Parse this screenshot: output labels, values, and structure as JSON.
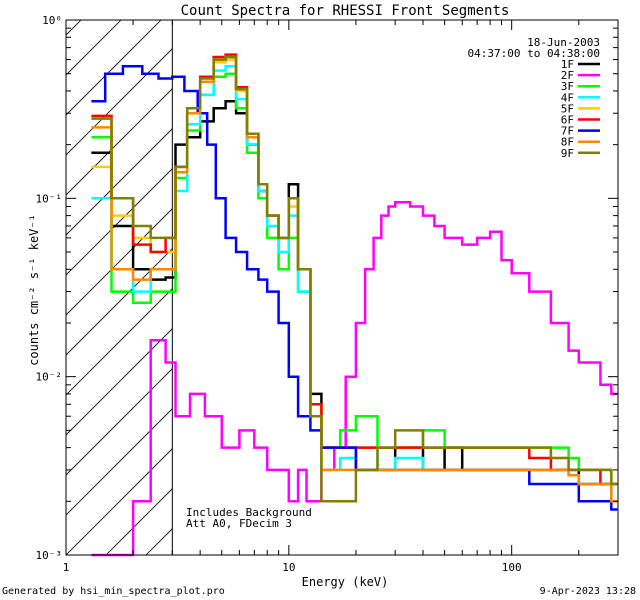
{
  "chart_data": {
    "type": "line",
    "title": "Count Spectra for RHESSI Front Segments",
    "xlabel": "Energy (keV)",
    "ylabel": "counts cm⁻² s⁻¹ keV⁻¹",
    "xscale": "log",
    "yscale": "log",
    "xlim": [
      1,
      300
    ],
    "ylim": [
      0.001,
      1
    ],
    "x_tick_labels": [
      {
        "value": 1,
        "label": "1"
      },
      {
        "value": 10,
        "label": "10"
      },
      {
        "value": 100,
        "label": "100"
      }
    ],
    "y_tick_labels": [
      {
        "value": 1,
        "label": "10⁰"
      },
      {
        "value": 0.1,
        "label": "10⁻¹"
      },
      {
        "value": 0.01,
        "label": "10⁻²"
      },
      {
        "value": 0.001,
        "label": "10⁻³"
      }
    ],
    "date": "18-Jun-2003",
    "time_range": "04:37:00 to 04:38:00",
    "attenuator_text": [
      "Includes Background",
      "Att A0, FDecim 3"
    ],
    "excluded_region_keV": [
      1,
      3
    ],
    "legend_position": "top-right",
    "series": [
      {
        "name": "1F",
        "color": "#000000",
        "x": [
          1.3,
          1.6,
          2.0,
          2.4,
          2.8,
          3.1,
          3.5,
          4.0,
          4.6,
          5.2,
          5.8,
          6.5,
          7.3,
          8.0,
          9.0,
          10.0,
          11.0,
          12.5,
          14,
          17,
          20,
          25,
          30,
          40,
          50,
          60,
          70,
          80,
          100,
          120,
          150,
          180,
          200,
          250,
          280
        ],
        "y": [
          0.18,
          0.07,
          0.04,
          0.035,
          0.036,
          0.2,
          0.22,
          0.27,
          0.32,
          0.35,
          0.3,
          0.2,
          0.11,
          0.08,
          0.06,
          0.12,
          0.04,
          0.008,
          0.004,
          0.004,
          0.003,
          0.003,
          0.004,
          0.003,
          0.004,
          0.003,
          0.003,
          0.003,
          0.003,
          0.003,
          0.003,
          0.003,
          0.0025,
          0.0025,
          0.002
        ]
      },
      {
        "name": "2F",
        "color": "#ff00ff",
        "x": [
          1.3,
          1.6,
          2.0,
          2.4,
          2.8,
          3.1,
          3.6,
          4.2,
          5.0,
          6.0,
          7.0,
          8.0,
          9.0,
          10,
          11,
          12,
          14,
          16,
          18,
          20,
          22,
          24,
          26,
          28,
          30,
          35,
          40,
          45,
          50,
          60,
          70,
          80,
          90,
          100,
          120,
          150,
          180,
          200,
          250,
          280
        ],
        "y": [
          0.001,
          0.001,
          0.002,
          0.016,
          0.012,
          0.006,
          0.008,
          0.006,
          0.004,
          0.005,
          0.004,
          0.003,
          0.003,
          0.002,
          0.003,
          0.002,
          0.003,
          0.004,
          0.01,
          0.02,
          0.04,
          0.06,
          0.08,
          0.09,
          0.095,
          0.09,
          0.08,
          0.07,
          0.06,
          0.055,
          0.06,
          0.065,
          0.045,
          0.038,
          0.03,
          0.02,
          0.014,
          0.012,
          0.009,
          0.008
        ]
      },
      {
        "name": "3F",
        "color": "#00ff00",
        "x": [
          1.3,
          1.6,
          2.0,
          2.4,
          2.8,
          3.1,
          3.5,
          4.0,
          4.6,
          5.2,
          5.8,
          6.5,
          7.3,
          8.0,
          9.0,
          10.0,
          11.0,
          12.5,
          14,
          17,
          20,
          25,
          30,
          40,
          50,
          60,
          70,
          80,
          100,
          120,
          150,
          180,
          200,
          250,
          280
        ],
        "y": [
          0.22,
          0.03,
          0.026,
          0.03,
          0.03,
          0.13,
          0.24,
          0.38,
          0.48,
          0.5,
          0.32,
          0.18,
          0.1,
          0.06,
          0.04,
          0.06,
          0.03,
          0.007,
          0.004,
          0.005,
          0.006,
          0.004,
          0.004,
          0.005,
          0.004,
          0.004,
          0.004,
          0.004,
          0.004,
          0.004,
          0.004,
          0.0035,
          0.003,
          0.003,
          0.0025
        ]
      },
      {
        "name": "4F",
        "color": "#00ffff",
        "x": [
          1.3,
          1.6,
          2.0,
          2.4,
          2.8,
          3.1,
          3.5,
          4.0,
          4.6,
          5.2,
          5.8,
          6.5,
          7.3,
          8.0,
          9.0,
          10.0,
          11.0,
          12.5,
          14,
          17,
          20,
          25,
          30,
          40,
          50,
          60,
          70,
          80,
          100,
          120,
          150,
          180,
          200,
          250,
          280
        ],
        "y": [
          0.1,
          0.04,
          0.03,
          0.04,
          0.04,
          0.11,
          0.26,
          0.38,
          0.52,
          0.55,
          0.36,
          0.2,
          0.11,
          0.07,
          0.05,
          0.08,
          0.03,
          0.006,
          0.003,
          0.0035,
          0.004,
          0.003,
          0.0035,
          0.003,
          0.003,
          0.003,
          0.003,
          0.003,
          0.003,
          0.003,
          0.003,
          0.0028,
          0.0025,
          0.0025,
          0.002
        ]
      },
      {
        "name": "5F",
        "color": "#ffcc00",
        "x": [
          1.3,
          1.6,
          2.0,
          2.4,
          2.8,
          3.1,
          3.5,
          4.0,
          4.6,
          5.2,
          5.8,
          6.5,
          7.3,
          8.0,
          9.0,
          10.0,
          11.0,
          12.5,
          14,
          17,
          20,
          25,
          30,
          40,
          50,
          60,
          70,
          80,
          100,
          120,
          150,
          180,
          200,
          250,
          280
        ],
        "y": [
          0.15,
          0.08,
          0.06,
          0.05,
          0.05,
          0.14,
          0.3,
          0.45,
          0.58,
          0.6,
          0.4,
          0.22,
          0.12,
          0.08,
          0.06,
          0.09,
          0.04,
          0.007,
          0.004,
          0.004,
          0.004,
          0.004,
          0.004,
          0.004,
          0.004,
          0.004,
          0.004,
          0.004,
          0.004,
          0.004,
          0.0035,
          0.003,
          0.003,
          0.003,
          0.0025
        ]
      },
      {
        "name": "6F",
        "color": "#ff0000",
        "x": [
          1.3,
          1.6,
          2.0,
          2.4,
          2.8,
          3.1,
          3.5,
          4.0,
          4.6,
          5.2,
          5.8,
          6.5,
          7.3,
          8.0,
          9.0,
          10.0,
          11.0,
          12.5,
          14,
          17,
          20,
          25,
          30,
          40,
          50,
          60,
          70,
          80,
          100,
          120,
          150,
          180,
          200,
          250,
          280
        ],
        "y": [
          0.29,
          0.1,
          0.055,
          0.05,
          0.06,
          0.15,
          0.32,
          0.48,
          0.62,
          0.64,
          0.42,
          0.23,
          0.12,
          0.08,
          0.06,
          0.1,
          0.04,
          0.007,
          0.004,
          0.004,
          0.004,
          0.004,
          0.004,
          0.004,
          0.004,
          0.004,
          0.004,
          0.004,
          0.004,
          0.0035,
          0.003,
          0.003,
          0.003,
          0.0025,
          0.0025
        ]
      },
      {
        "name": "7F",
        "color": "#0000ff",
        "x": [
          1.3,
          1.5,
          1.8,
          2.2,
          2.6,
          3.0,
          3.4,
          3.9,
          4.3,
          4.7,
          5.2,
          5.8,
          6.5,
          7.3,
          8.0,
          9.0,
          10.0,
          11.0,
          12.5,
          14,
          17,
          20,
          25,
          30,
          40,
          50,
          60,
          70,
          80,
          100,
          120,
          150,
          180,
          200,
          250,
          280
        ],
        "y": [
          0.35,
          0.5,
          0.55,
          0.5,
          0.47,
          0.48,
          0.4,
          0.3,
          0.2,
          0.1,
          0.06,
          0.05,
          0.04,
          0.035,
          0.03,
          0.02,
          0.01,
          0.006,
          0.005,
          0.004,
          0.004,
          0.003,
          0.003,
          0.003,
          0.003,
          0.003,
          0.003,
          0.003,
          0.003,
          0.003,
          0.0025,
          0.0025,
          0.0025,
          0.002,
          0.002,
          0.0018
        ]
      },
      {
        "name": "8F",
        "color": "#ff8800",
        "x": [
          1.3,
          1.6,
          2.0,
          2.4,
          2.8,
          3.1,
          3.5,
          4.0,
          4.6,
          5.2,
          5.8,
          6.5,
          7.3,
          8.0,
          9.0,
          10.0,
          11.0,
          12.5,
          14,
          17,
          20,
          25,
          30,
          40,
          50,
          60,
          70,
          80,
          100,
          120,
          150,
          180,
          200,
          250,
          280
        ],
        "y": [
          0.25,
          0.04,
          0.035,
          0.04,
          0.04,
          0.14,
          0.3,
          0.45,
          0.6,
          0.62,
          0.41,
          0.22,
          0.12,
          0.08,
          0.06,
          0.1,
          0.04,
          0.006,
          0.003,
          0.003,
          0.003,
          0.003,
          0.003,
          0.003,
          0.003,
          0.003,
          0.003,
          0.003,
          0.003,
          0.003,
          0.003,
          0.0028,
          0.0025,
          0.0025,
          0.002
        ]
      },
      {
        "name": "9F",
        "color": "#808000",
        "x": [
          1.3,
          1.6,
          2.0,
          2.4,
          2.8,
          3.1,
          3.5,
          4.0,
          4.6,
          5.2,
          5.8,
          6.5,
          7.3,
          8.0,
          9.0,
          10.0,
          11.0,
          12.5,
          14,
          17,
          20,
          25,
          30,
          40,
          50,
          60,
          70,
          80,
          100,
          120,
          150,
          180,
          200,
          250,
          280
        ],
        "y": [
          0.28,
          0.1,
          0.07,
          0.06,
          0.06,
          0.15,
          0.32,
          0.47,
          0.6,
          0.62,
          0.41,
          0.23,
          0.12,
          0.08,
          0.06,
          0.1,
          0.04,
          0.006,
          0.002,
          0.002,
          0.003,
          0.004,
          0.005,
          0.004,
          0.004,
          0.004,
          0.004,
          0.004,
          0.004,
          0.004,
          0.0035,
          0.003,
          0.003,
          0.003,
          0.0025
        ]
      }
    ]
  },
  "footer": {
    "generated_by": "Generated by hsi_min_spectra_plot.pro",
    "timestamp": "9-Apr-2023 13:28"
  }
}
